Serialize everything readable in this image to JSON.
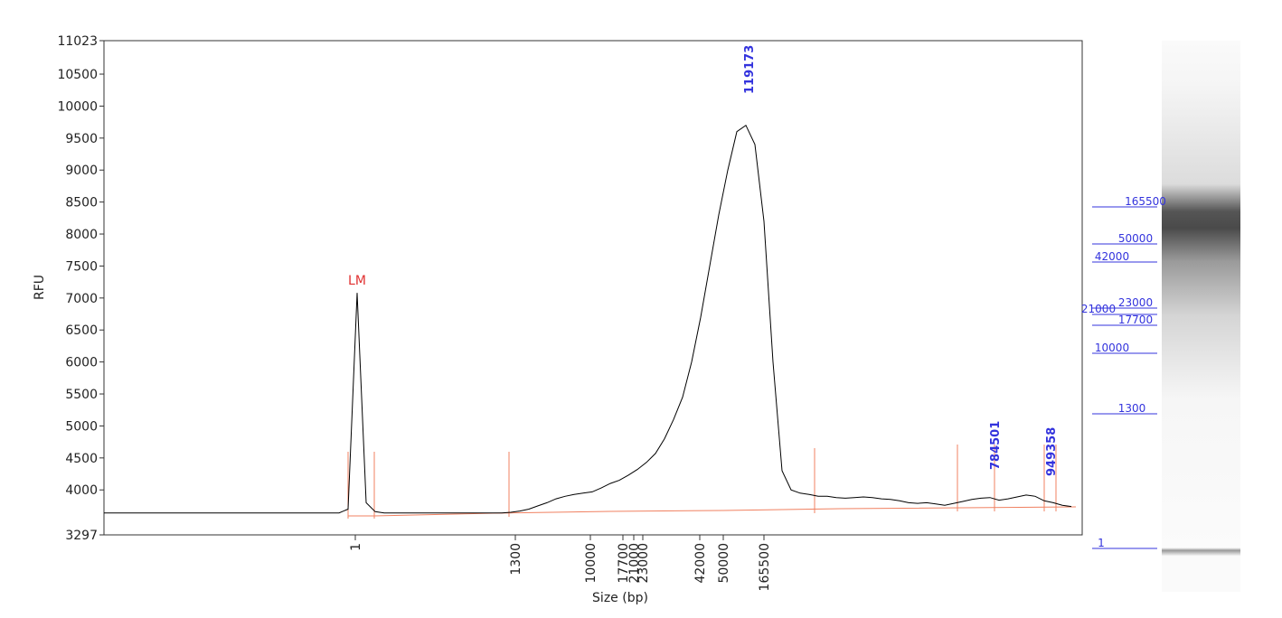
{
  "chart_data": {
    "type": "line",
    "ylabel": "RFU",
    "xlabel": "Size (bp)",
    "ylim": [
      3297,
      11023
    ],
    "yticks": [
      3297,
      4000,
      4500,
      5000,
      5500,
      6000,
      6500,
      7000,
      7500,
      8000,
      8500,
      9000,
      9500,
      10000,
      10500,
      11023
    ],
    "xticks": [
      1,
      1300,
      10000,
      17700,
      21000,
      23000,
      42000,
      50000,
      165500
    ],
    "color": "#000000",
    "values": [
      3640,
      3640,
      3640,
      3640,
      3640,
      3640,
      3640,
      3640,
      3640,
      3640,
      3640,
      3640,
      3640,
      3640,
      3640,
      3640,
      3640,
      3640,
      3640,
      3640,
      3640,
      3640,
      3640,
      3640,
      3640,
      3640,
      3640,
      3700,
      7080,
      3800,
      3660,
      3640,
      3640,
      3640,
      3640,
      3640,
      3640,
      3640,
      3640,
      3640,
      3640,
      3640,
      3640,
      3640,
      3640,
      3650,
      3670,
      3700,
      3750,
      3800,
      3860,
      3900,
      3930,
      3950,
      3970,
      4030,
      4100,
      4150,
      4230,
      4320,
      4430,
      4570,
      4800,
      5100,
      5450,
      6000,
      6700,
      7500,
      8300,
      9000,
      9600,
      9700,
      9400,
      8200,
      6000,
      4300,
      4000,
      3950,
      3930,
      3900,
      3900,
      3880,
      3870,
      3880,
      3890,
      3880,
      3860,
      3850,
      3830,
      3800,
      3790,
      3800,
      3780,
      3760,
      3790,
      3820,
      3850,
      3870,
      3880,
      3840,
      3860,
      3890,
      3920,
      3900,
      3830,
      3800,
      3760,
      3740
    ],
    "peak_labels": [
      "LM",
      "119173",
      "784501",
      "949358"
    ],
    "gel_ladder": [
      165500,
      50000,
      42000,
      23000,
      21000,
      17700,
      10000,
      1300,
      1
    ]
  }
}
